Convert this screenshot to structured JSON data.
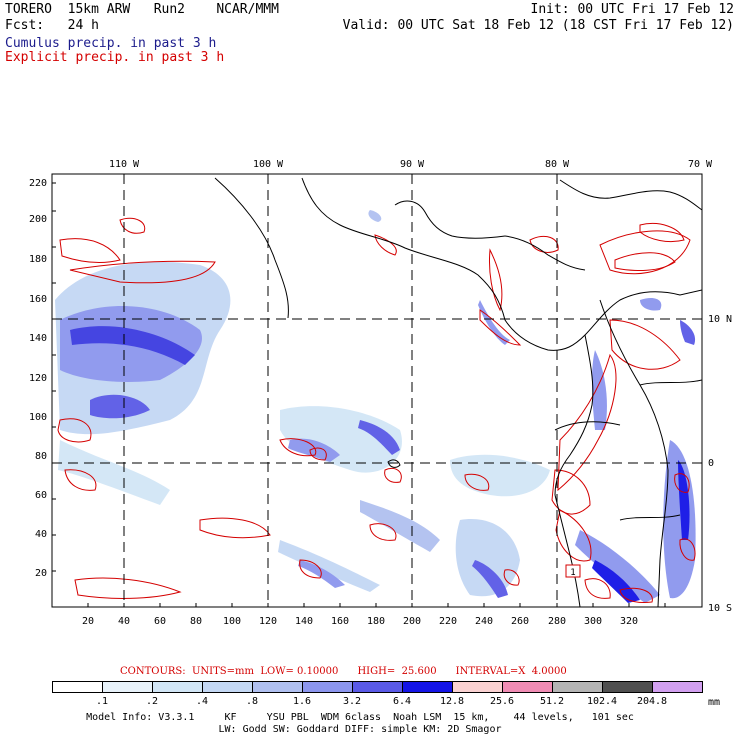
{
  "header": {
    "model": "TORERO  15km ARW   Run2    NCAR/MMM",
    "init": "Init: 00 UTC Fri 17 Feb 12",
    "fcst": "Fcst:   24 h",
    "valid": "Valid: 00 UTC Sat 18 Feb 12 (18 CST Fri 17 Feb 12)",
    "field1": "Cumulus precip. in past 3 h",
    "field2": "Explicit precip. in past 3 h",
    "field1_color": "#1c1c8c",
    "field2_color": "#d40000"
  },
  "map": {
    "top_lon_labels": [
      "110 W",
      "100 W",
      "90 W",
      "80 W",
      "70 W"
    ],
    "right_lat_labels": [
      "10 N",
      "0",
      "10 S"
    ],
    "x_ticks": [
      "20",
      "40",
      "60",
      "80",
      "100",
      "120",
      "140",
      "160",
      "180",
      "200",
      "220",
      "240",
      "260",
      "280",
      "300",
      "320"
    ],
    "y_ticks": [
      "220",
      "200",
      "180",
      "160",
      "140",
      "120",
      "100",
      "80",
      "60",
      "40",
      "20"
    ],
    "box_label": "1"
  },
  "legend": {
    "contours_line": "CONTOURS:  UNITS=mm  LOW= 0.10000      HIGH=  25.600      INTERVAL=X  4.0000",
    "contours_color": "#d40000",
    "levels": [
      ".1",
      ".2",
      ".4",
      ".8",
      "1.6",
      "3.2",
      "6.4",
      "12.8",
      "25.6",
      "51.2",
      "102.4",
      "204.8"
    ],
    "colors": [
      "#ffffff",
      "#e8f2fa",
      "#d2e6f6",
      "#c4d8f4",
      "#b0c0f0",
      "#8c96ee",
      "#5a5ae6",
      "#1414e6",
      "#fad2d2",
      "#f08cb4",
      "#b4b4b4",
      "#505050",
      "#d2a0f0"
    ],
    "units": "mm"
  },
  "footer": {
    "line1": "Model Info: V3.3.1     KF     YSU PBL  WDM 6class  Noah LSM  15 km,    44 levels,   101 sec",
    "line2": "LW: Godd SW: Goddard DIFF: simple KM: 2D Smagor"
  }
}
